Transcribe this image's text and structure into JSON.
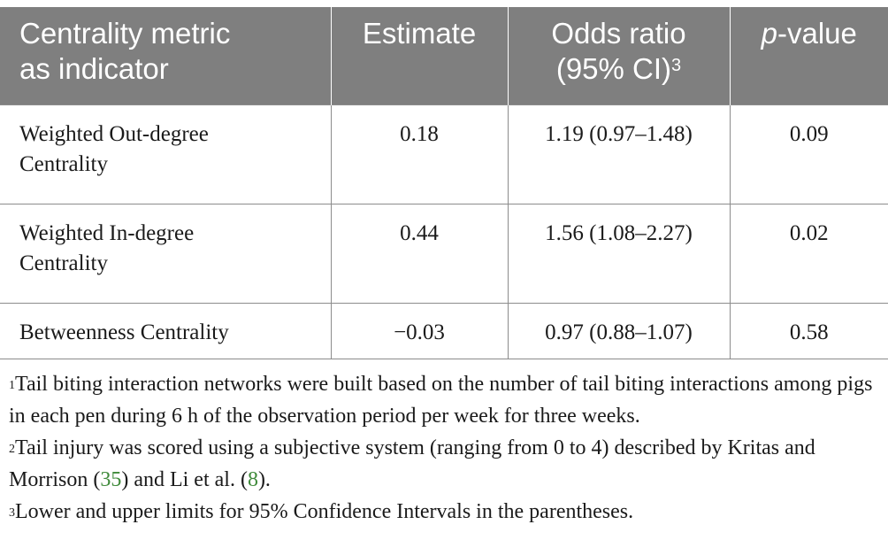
{
  "table": {
    "headers": {
      "metric": {
        "line1": "Centrality metric",
        "line2": "as indicator"
      },
      "estimate": "Estimate",
      "odds": {
        "line1": "Odds ratio",
        "line2": "(95% CI)",
        "sup": "3"
      },
      "pvalue": {
        "italic": "p",
        "rest": "-value"
      }
    },
    "rows": [
      {
        "metric_line1": "Weighted Out-degree",
        "metric_line2": "Centrality",
        "estimate": "0.18",
        "odds_ratio": "1.19 (0.97–1.48)",
        "p_value": "0.09"
      },
      {
        "metric_line1": "Weighted In-degree",
        "metric_line2": "Centrality",
        "estimate": "0.44",
        "odds_ratio": "1.56 (1.08–2.27)",
        "p_value": "0.02"
      },
      {
        "metric_line1": "Betweenness Centrality",
        "metric_line2": "",
        "estimate": "−0.03",
        "odds_ratio": "0.97 (0.88–1.07)",
        "p_value": "0.58"
      }
    ]
  },
  "footnotes": {
    "fn1": {
      "marker": "1",
      "text": "Tail biting interaction networks were built based on the number of tail biting interactions among pigs in each pen during 6 h of the observation period per week for three weeks."
    },
    "fn2": {
      "marker": "2",
      "text_a": "Tail injury was scored using a subjective system (ranging from 0 to 4) described by Kritas and Morrison (",
      "ref_a": "35",
      "text_b": ") and Li et al. (",
      "ref_b": "8",
      "text_c": ")."
    },
    "fn3": {
      "marker": "3",
      "text": "Lower and upper limits for 95% Confidence Intervals in the parentheses."
    }
  },
  "colors": {
    "header_bg": "#7f7f7f",
    "header_text": "#ffffff",
    "grid": "#8c8c8c",
    "reference_link": "#3f8a3a"
  }
}
